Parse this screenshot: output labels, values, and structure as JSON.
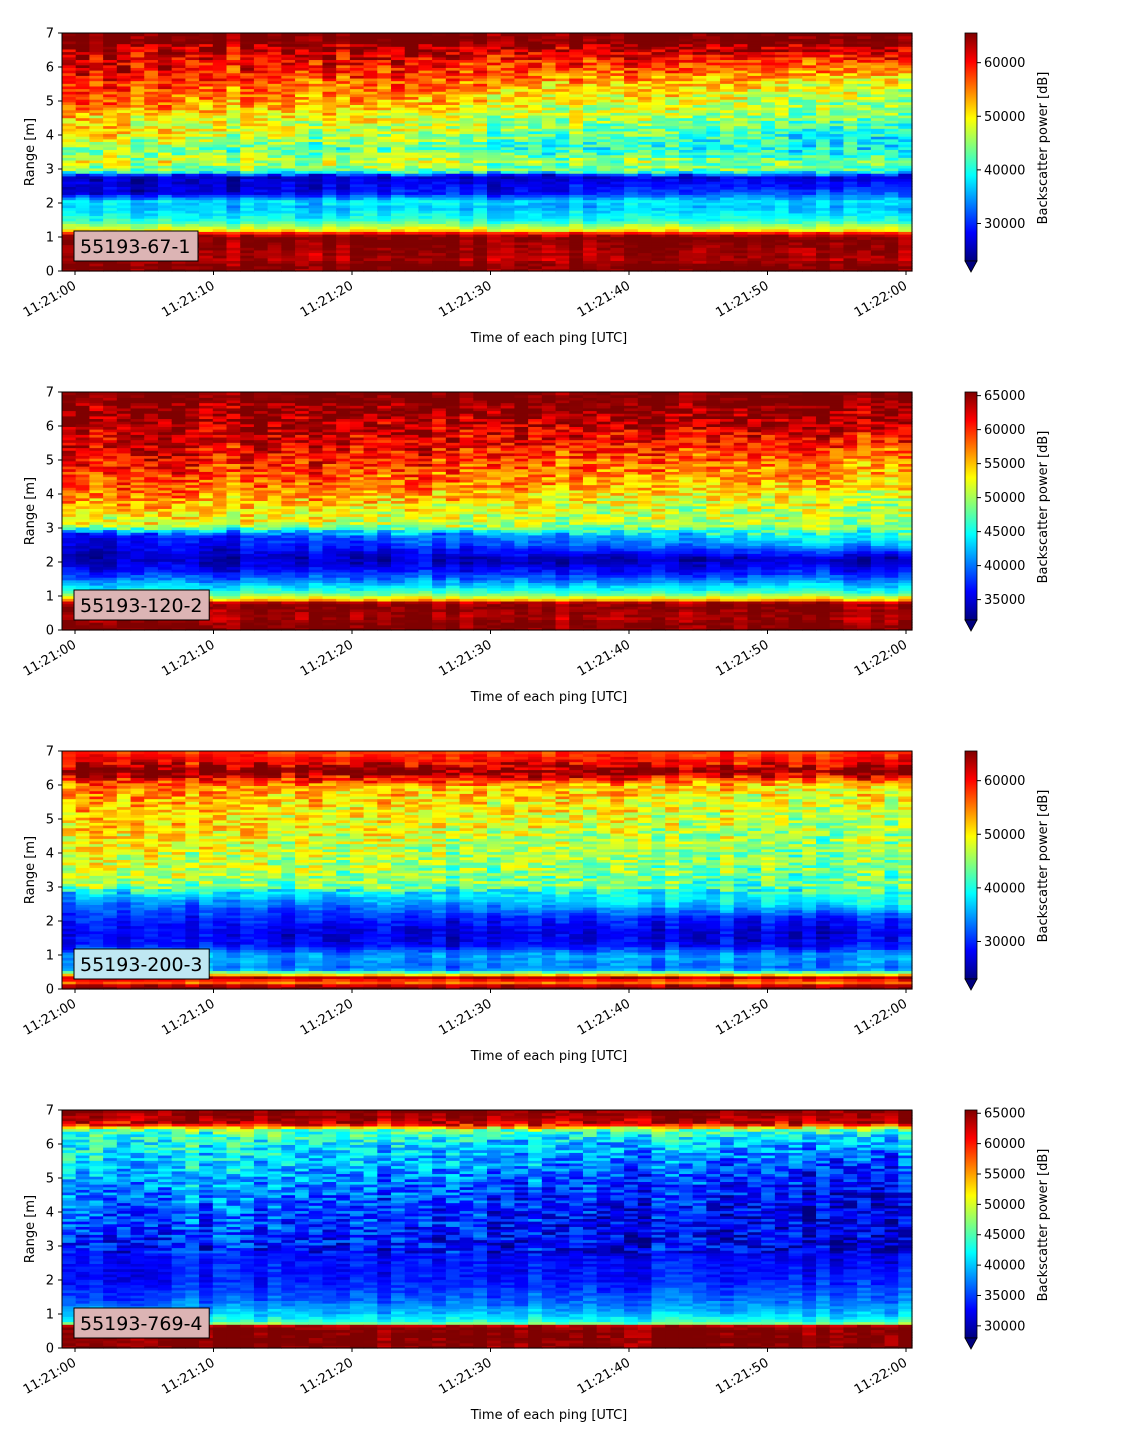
{
  "figure": {
    "colormap": "jet",
    "colormap_stops": [
      "#00007f",
      "#0000ff",
      "#007fff",
      "#00ffff",
      "#7fff7f",
      "#ffff00",
      "#ff7f00",
      "#ff0000",
      "#7f0000"
    ]
  },
  "chart_data": [
    {
      "type": "heatmap",
      "tag": "55193-67-1",
      "tag_color": "#dcb4b4",
      "xlabel": "Time of each ping [UTC]",
      "ylabel": "Range [m]",
      "colorbar_label": "Backscatter power [dB]",
      "x_ticks": [
        "11:21:00",
        "11:21:10",
        "11:21:20",
        "11:21:30",
        "11:21:40",
        "11:21:50",
        "11:22:00"
      ],
      "y_ticks": [
        "0",
        "1",
        "2",
        "3",
        "4",
        "5",
        "6",
        "7"
      ],
      "ylim": [
        0,
        7
      ],
      "colorbar_ticks": [
        "30000",
        "40000",
        "50000",
        "60000"
      ],
      "colorbar_tick_values": [
        30000,
        40000,
        50000,
        60000
      ],
      "vmin": 23000,
      "vmax": 65535,
      "profile": {
        "depths": [
          0.0,
          0.25,
          0.3,
          1.0,
          1.1,
          1.2,
          1.5,
          1.9,
          2.05,
          2.3,
          2.8,
          2.95,
          3.2,
          3.6,
          4.0,
          4.5,
          5.0,
          5.5,
          6.0,
          6.5,
          6.8,
          7.0
        ],
        "start": [
          65535,
          65535,
          63000,
          65535,
          62000,
          50000,
          40000,
          36000,
          38000,
          26000,
          25000,
          42000,
          48000,
          44000,
          50000,
          51000,
          56000,
          59000,
          61000,
          63000,
          65535,
          65535
        ],
        "end": [
          65535,
          65535,
          63000,
          65535,
          62000,
          50000,
          40000,
          36000,
          38000,
          32000,
          27000,
          43000,
          44000,
          38000,
          38000,
          43000,
          45000,
          48000,
          55000,
          62000,
          65535,
          65535
        ]
      }
    },
    {
      "type": "heatmap",
      "tag": "55193-120-2",
      "tag_color": "#dcb4b4",
      "xlabel": "Time of each ping [UTC]",
      "ylabel": "Range [m]",
      "colorbar_label": "Backscatter power [dB]",
      "x_ticks": [
        "11:21:00",
        "11:21:10",
        "11:21:20",
        "11:21:30",
        "11:21:40",
        "11:21:50",
        "11:22:00"
      ],
      "y_ticks": [
        "0",
        "1",
        "2",
        "3",
        "4",
        "5",
        "6",
        "7"
      ],
      "ylim": [
        0,
        7
      ],
      "colorbar_ticks": [
        "35000",
        "40000",
        "45000",
        "50000",
        "55000",
        "60000",
        "65000"
      ],
      "colorbar_tick_values": [
        35000,
        40000,
        45000,
        50000,
        55000,
        60000,
        65000
      ],
      "vmin": 32000,
      "vmax": 65535,
      "profile": {
        "depths": [
          0.0,
          0.25,
          0.3,
          0.8,
          0.9,
          1.1,
          1.5,
          1.8,
          2.1,
          2.5,
          2.8,
          3.1,
          3.6,
          4.0,
          4.5,
          5.0,
          5.5,
          6.0,
          6.5,
          7.0
        ],
        "start": [
          65535,
          65535,
          64000,
          65535,
          55000,
          47000,
          40000,
          36000,
          34000,
          35000,
          36000,
          52000,
          55000,
          58000,
          60000,
          62000,
          63000,
          64000,
          65535,
          65535
        ],
        "end": [
          65535,
          65535,
          64000,
          65535,
          55000,
          47000,
          40000,
          36000,
          34000,
          42000,
          46000,
          50000,
          50000,
          52000,
          55000,
          57000,
          60000,
          63000,
          65535,
          65535
        ]
      }
    },
    {
      "type": "heatmap",
      "tag": "55193-200-3",
      "tag_color": "#bfe7f2",
      "xlabel": "Time of each ping [UTC]",
      "ylabel": "Range [m]",
      "colorbar_label": "Backscatter power [dB]",
      "x_ticks": [
        "11:21:00",
        "11:21:10",
        "11:21:20",
        "11:21:30",
        "11:21:40",
        "11:21:50",
        "11:22:00"
      ],
      "y_ticks": [
        "0",
        "1",
        "2",
        "3",
        "4",
        "5",
        "6",
        "7"
      ],
      "ylim": [
        0,
        7
      ],
      "colorbar_ticks": [
        "30000",
        "40000",
        "50000",
        "60000"
      ],
      "colorbar_tick_values": [
        30000,
        40000,
        50000,
        60000
      ],
      "vmin": 23000,
      "vmax": 65535,
      "profile": {
        "depths": [
          0.0,
          0.1,
          0.2,
          0.35,
          0.45,
          0.6,
          1.0,
          1.3,
          1.7,
          2.1,
          2.5,
          2.9,
          3.0,
          3.5,
          4.0,
          4.5,
          5.0,
          5.5,
          6.0,
          6.2,
          6.4,
          6.7,
          7.0
        ],
        "start": [
          65535,
          64000,
          55000,
          63000,
          48000,
          33000,
          35000,
          28000,
          27000,
          29000,
          31000,
          38000,
          44000,
          47000,
          48000,
          50000,
          51000,
          52000,
          55000,
          60000,
          65535,
          60000,
          58000
        ],
        "end": [
          65535,
          64000,
          55000,
          63000,
          48000,
          33000,
          35000,
          28000,
          27000,
          30000,
          39000,
          41000,
          42000,
          43000,
          44000,
          45000,
          46000,
          48000,
          50000,
          58000,
          65535,
          60000,
          57000
        ]
      }
    },
    {
      "type": "heatmap",
      "tag": "55193-769-4",
      "tag_color": "#dcb4b4",
      "xlabel": "Time of each ping [UTC]",
      "ylabel": "Range [m]",
      "colorbar_label": "Backscatter power [dB]",
      "x_ticks": [
        "11:21:00",
        "11:21:10",
        "11:21:20",
        "11:21:30",
        "11:21:40",
        "11:21:50",
        "11:22:00"
      ],
      "y_ticks": [
        "0",
        "1",
        "2",
        "3",
        "4",
        "5",
        "6",
        "7"
      ],
      "ylim": [
        0,
        7
      ],
      "colorbar_ticks": [
        "30000",
        "35000",
        "40000",
        "45000",
        "50000",
        "55000",
        "60000",
        "65000"
      ],
      "colorbar_tick_values": [
        30000,
        35000,
        40000,
        45000,
        50000,
        55000,
        60000,
        65000
      ],
      "vmin": 28000,
      "vmax": 65535,
      "profile": {
        "depths": [
          0.0,
          0.3,
          0.4,
          0.65,
          0.75,
          1.0,
          1.4,
          2.0,
          3.0,
          4.0,
          4.5,
          5.0,
          5.5,
          6.0,
          6.4,
          6.6,
          7.0
        ],
        "start": [
          65535,
          65535,
          65535,
          65535,
          44000,
          40000,
          36000,
          33000,
          34000,
          37000,
          38000,
          40000,
          42000,
          43000,
          45000,
          63000,
          65535
        ],
        "end": [
          65535,
          65535,
          65535,
          65535,
          44000,
          40000,
          37000,
          34000,
          31000,
          31000,
          32000,
          33000,
          35000,
          38000,
          44000,
          62000,
          65535
        ]
      }
    }
  ]
}
